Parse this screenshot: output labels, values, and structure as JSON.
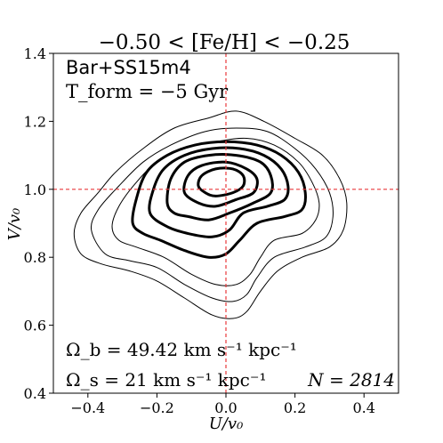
{
  "chart_data": {
    "type": "contour",
    "title": "−0.50 < [Fe/H] < −0.25",
    "xlabel": "U/v₀",
    "ylabel": "V/v₀",
    "xlim": [
      -0.5,
      0.5
    ],
    "ylim": [
      0.4,
      1.4
    ],
    "xticks": [
      -0.4,
      -0.2,
      0.0,
      0.2,
      0.4
    ],
    "xtick_labels": [
      "−0.4",
      "−0.2",
      "0.0",
      "0.2",
      "0.4"
    ],
    "yticks": [
      0.4,
      0.6,
      0.8,
      1.0,
      1.2,
      1.4
    ],
    "ytick_labels": [
      "0.4",
      "0.6",
      "0.8",
      "1.0",
      "1.2",
      "1.4"
    ],
    "reference_lines": {
      "x": 0.0,
      "y": 1.0,
      "color": "#e8383b",
      "style": "dashed"
    },
    "annotations": {
      "model": "Bar+SS15m4",
      "tform": "T_form = −5 Gyr",
      "omega_b": "Ω_b = 49.42 km s⁻¹ kpc⁻¹",
      "omega_s": "Ω_s = 21 km s⁻¹ kpc⁻¹",
      "n": "N = 2814"
    },
    "contours": [
      {
        "level": 1,
        "weight": "thin",
        "points": [
          [
            -0.44,
            0.87
          ],
          [
            -0.42,
            0.93
          ],
          [
            -0.37,
            0.99
          ],
          [
            -0.32,
            1.05
          ],
          [
            -0.24,
            1.12
          ],
          [
            -0.15,
            1.18
          ],
          [
            -0.05,
            1.21
          ],
          [
            0.03,
            1.23
          ],
          [
            0.11,
            1.2
          ],
          [
            0.2,
            1.15
          ],
          [
            0.28,
            1.1
          ],
          [
            0.33,
            1.03
          ],
          [
            0.35,
            0.96
          ],
          [
            0.34,
            0.88
          ],
          [
            0.3,
            0.83
          ],
          [
            0.22,
            0.8
          ],
          [
            0.15,
            0.76
          ],
          [
            0.1,
            0.7
          ],
          [
            0.06,
            0.64
          ],
          [
            0.02,
            0.62
          ],
          [
            -0.04,
            0.63
          ],
          [
            -0.12,
            0.68
          ],
          [
            -0.2,
            0.73
          ],
          [
            -0.28,
            0.76
          ],
          [
            -0.36,
            0.78
          ],
          [
            -0.42,
            0.81
          ]
        ]
      },
      {
        "level": 2,
        "weight": "thin",
        "points": [
          [
            -0.39,
            0.88
          ],
          [
            -0.37,
            0.94
          ],
          [
            -0.31,
            1.01
          ],
          [
            -0.24,
            1.08
          ],
          [
            -0.16,
            1.13
          ],
          [
            -0.06,
            1.17
          ],
          [
            0.03,
            1.18
          ],
          [
            0.12,
            1.17
          ],
          [
            0.2,
            1.12
          ],
          [
            0.26,
            1.06
          ],
          [
            0.3,
            0.99
          ],
          [
            0.31,
            0.92
          ],
          [
            0.29,
            0.86
          ],
          [
            0.23,
            0.83
          ],
          [
            0.14,
            0.8
          ],
          [
            0.09,
            0.74
          ],
          [
            0.06,
            0.69
          ],
          [
            0.02,
            0.67
          ],
          [
            -0.04,
            0.68
          ],
          [
            -0.12,
            0.72
          ],
          [
            -0.2,
            0.77
          ],
          [
            -0.28,
            0.79
          ],
          [
            -0.35,
            0.81
          ]
        ]
      },
      {
        "level": 3,
        "weight": "thin",
        "points": [
          [
            -0.33,
            0.89
          ],
          [
            -0.31,
            0.95
          ],
          [
            -0.26,
            1.02
          ],
          [
            -0.2,
            1.08
          ],
          [
            -0.12,
            1.12
          ],
          [
            -0.03,
            1.14
          ],
          [
            0.06,
            1.15
          ],
          [
            0.14,
            1.13
          ],
          [
            0.21,
            1.08
          ],
          [
            0.25,
            1.02
          ],
          [
            0.27,
            0.96
          ],
          [
            0.26,
            0.91
          ],
          [
            0.22,
            0.87
          ],
          [
            0.14,
            0.85
          ],
          [
            0.1,
            0.8
          ],
          [
            0.07,
            0.75
          ],
          [
            0.03,
            0.72
          ],
          [
            -0.03,
            0.72
          ],
          [
            -0.1,
            0.75
          ],
          [
            -0.18,
            0.8
          ],
          [
            -0.26,
            0.83
          ],
          [
            -0.31,
            0.85
          ]
        ]
      },
      {
        "level": 4,
        "weight": "thick",
        "points": [
          [
            -0.27,
            0.9
          ],
          [
            -0.26,
            0.97
          ],
          [
            -0.23,
            1.05
          ],
          [
            -0.17,
            1.1
          ],
          [
            -0.09,
            1.13
          ],
          [
            0.0,
            1.14
          ],
          [
            0.09,
            1.13
          ],
          [
            0.16,
            1.1
          ],
          [
            0.21,
            1.05
          ],
          [
            0.23,
            0.99
          ],
          [
            0.22,
            0.94
          ],
          [
            0.17,
            0.92
          ],
          [
            0.09,
            0.9
          ],
          [
            0.04,
            0.85
          ],
          [
            0.0,
            0.81
          ],
          [
            -0.05,
            0.8
          ],
          [
            -0.12,
            0.82
          ],
          [
            -0.19,
            0.85
          ],
          [
            -0.24,
            0.87
          ]
        ]
      },
      {
        "level": 5,
        "weight": "thick",
        "points": [
          [
            -0.22,
            0.93
          ],
          [
            -0.21,
            1.0
          ],
          [
            -0.18,
            1.06
          ],
          [
            -0.12,
            1.1
          ],
          [
            -0.04,
            1.12
          ],
          [
            0.04,
            1.12
          ],
          [
            0.11,
            1.1
          ],
          [
            0.16,
            1.06
          ],
          [
            0.18,
            1.01
          ],
          [
            0.17,
            0.97
          ],
          [
            0.12,
            0.95
          ],
          [
            0.05,
            0.93
          ],
          [
            0.01,
            0.88
          ],
          [
            -0.04,
            0.86
          ],
          [
            -0.11,
            0.87
          ],
          [
            -0.17,
            0.89
          ]
        ]
      },
      {
        "level": 6,
        "weight": "thick",
        "points": [
          [
            -0.17,
            0.96
          ],
          [
            -0.16,
            1.03
          ],
          [
            -0.12,
            1.08
          ],
          [
            -0.05,
            1.1
          ],
          [
            0.03,
            1.1
          ],
          [
            0.1,
            1.08
          ],
          [
            0.13,
            1.04
          ],
          [
            0.13,
            0.99
          ],
          [
            0.08,
            0.96
          ],
          [
            0.01,
            0.93
          ],
          [
            -0.05,
            0.91
          ],
          [
            -0.11,
            0.92
          ],
          [
            -0.15,
            0.93
          ]
        ]
      },
      {
        "level": 7,
        "weight": "thick",
        "points": [
          [
            -0.12,
            0.99
          ],
          [
            -0.11,
            1.04
          ],
          [
            -0.07,
            1.07
          ],
          [
            0.0,
            1.08
          ],
          [
            0.06,
            1.06
          ],
          [
            0.09,
            1.03
          ],
          [
            0.08,
            0.99
          ],
          [
            0.03,
            0.97
          ],
          [
            -0.03,
            0.95
          ],
          [
            -0.08,
            0.96
          ]
        ]
      },
      {
        "level": 8,
        "weight": "thick",
        "points": [
          [
            -0.08,
            1.01
          ],
          [
            -0.07,
            1.04
          ],
          [
            -0.03,
            1.06
          ],
          [
            0.02,
            1.06
          ],
          [
            0.05,
            1.04
          ],
          [
            0.05,
            1.01
          ],
          [
            0.02,
            0.99
          ],
          [
            -0.03,
            0.98
          ],
          [
            -0.06,
            0.99
          ]
        ]
      }
    ]
  }
}
